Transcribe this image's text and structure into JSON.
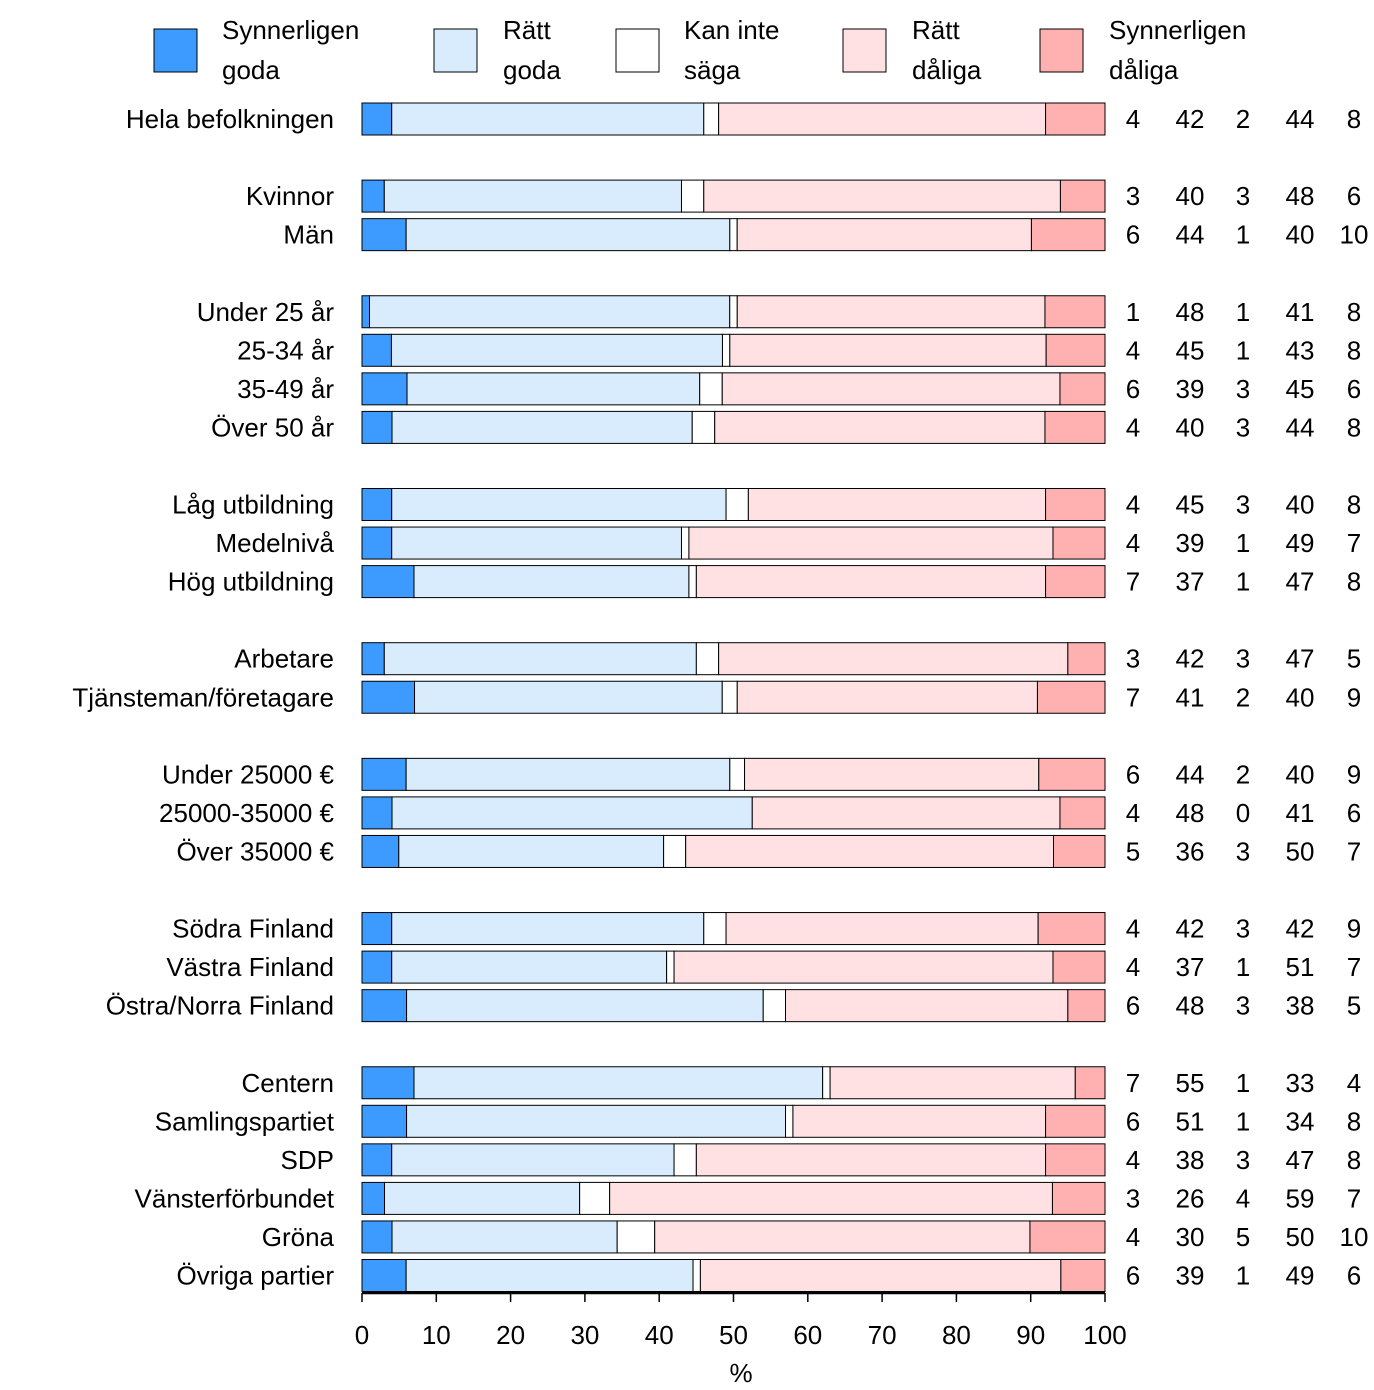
{
  "chart_data": {
    "type": "bar",
    "orientation": "horizontal",
    "stacked": true,
    "xlabel": "%",
    "xlim": [
      0,
      100
    ],
    "xticks": [
      0,
      10,
      20,
      30,
      40,
      50,
      60,
      70,
      80,
      90,
      100
    ],
    "legend_position": "top",
    "series": [
      {
        "name": "Synnerligen goda",
        "legend_lines": [
          "Synnerligen",
          "goda"
        ],
        "color": "#3d9bff"
      },
      {
        "name": "Rätt goda",
        "legend_lines": [
          "Rätt",
          "goda"
        ],
        "color": "#d9ecfd"
      },
      {
        "name": "Kan inte säga",
        "legend_lines": [
          "Kan inte",
          "säga"
        ],
        "color": "#ffffff"
      },
      {
        "name": "Rätt dåliga",
        "legend_lines": [
          "Rätt",
          "dåliga"
        ],
        "color": "#ffe1e3"
      },
      {
        "name": "Synnerligen dåliga",
        "legend_lines": [
          "Synnerligen",
          "dåliga"
        ],
        "color": "#ffb0b1"
      }
    ],
    "groups": [
      [
        {
          "label": "Hela befolkningen",
          "values": [
            4,
            42,
            2,
            44,
            8
          ]
        }
      ],
      [
        {
          "label": "Kvinnor",
          "values": [
            3,
            40,
            3,
            48,
            6
          ]
        },
        {
          "label": "Män",
          "values": [
            6,
            44,
            1,
            40,
            10
          ]
        }
      ],
      [
        {
          "label": "Under 25 år",
          "values": [
            1,
            48,
            1,
            41,
            8
          ]
        },
        {
          "label": "25-34 år",
          "values": [
            4,
            45,
            1,
            43,
            8
          ]
        },
        {
          "label": "35-49 år",
          "values": [
            6,
            39,
            3,
            45,
            6
          ]
        },
        {
          "label": "Över 50 år",
          "values": [
            4,
            40,
            3,
            44,
            8
          ]
        }
      ],
      [
        {
          "label": "Låg utbildning",
          "values": [
            4,
            45,
            3,
            40,
            8
          ]
        },
        {
          "label": "Medelnivå",
          "values": [
            4,
            39,
            1,
            49,
            7
          ]
        },
        {
          "label": "Hög utbildning",
          "values": [
            7,
            37,
            1,
            47,
            8
          ]
        }
      ],
      [
        {
          "label": "Arbetare",
          "values": [
            3,
            42,
            3,
            47,
            5
          ]
        },
        {
          "label": "Tjänsteman/företagare",
          "values": [
            7,
            41,
            2,
            40,
            9
          ]
        }
      ],
      [
        {
          "label": "Under 25000 €",
          "values": [
            6,
            44,
            2,
            40,
            9
          ]
        },
        {
          "label": "25000-35000 €",
          "values": [
            4,
            48,
            0,
            41,
            6
          ]
        },
        {
          "label": "Över 35000 €",
          "values": [
            5,
            36,
            3,
            50,
            7
          ]
        }
      ],
      [
        {
          "label": "Södra Finland",
          "values": [
            4,
            42,
            3,
            42,
            9
          ]
        },
        {
          "label": "Västra Finland",
          "values": [
            4,
            37,
            1,
            51,
            7
          ]
        },
        {
          "label": "Östra/Norra Finland",
          "values": [
            6,
            48,
            3,
            38,
            5
          ]
        }
      ],
      [
        {
          "label": "Centern",
          "values": [
            7,
            55,
            1,
            33,
            4
          ]
        },
        {
          "label": "Samlingspartiet",
          "values": [
            6,
            51,
            1,
            34,
            8
          ]
        },
        {
          "label": "SDP",
          "values": [
            4,
            38,
            3,
            47,
            8
          ]
        },
        {
          "label": "Vänsterförbundet",
          "values": [
            3,
            26,
            4,
            59,
            7
          ]
        },
        {
          "label": "Gröna",
          "values": [
            4,
            30,
            5,
            50,
            10
          ]
        },
        {
          "label": "Övriga partier",
          "values": [
            6,
            39,
            1,
            49,
            6
          ]
        }
      ]
    ]
  }
}
